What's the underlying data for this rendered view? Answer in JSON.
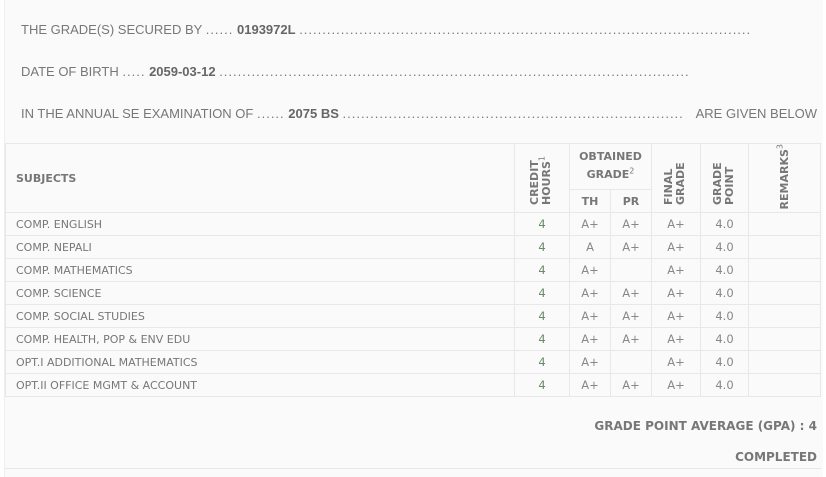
{
  "header": {
    "secured_by_label": "THE GRADE(S) SECURED BY",
    "secured_by_value": "0193972L",
    "dob_label": "DATE OF BIRTH",
    "dob_value": "2059-03-12",
    "exam_label": "IN THE ANNUAL SE EXAMINATION OF",
    "exam_value": "2075 BS",
    "exam_suffix": "ARE GIVEN BELOW"
  },
  "table": {
    "headers": {
      "subjects": "SUBJECTS",
      "credit": "CREDIT HOURS",
      "credit_sup": "1",
      "obtained": "OBTAINED GRADE",
      "obtained_sup": "2",
      "th": "TH",
      "pr": "PR",
      "final": "FINAL GRADE",
      "grade_point": "GRADE POINT",
      "remarks": "REMARKS",
      "remarks_sup": "3"
    },
    "rows": [
      {
        "subject": "COMP. ENGLISH",
        "credit": "4",
        "th": "A+",
        "pr": "A+",
        "final": "A+",
        "gp": "4.0",
        "remarks": ""
      },
      {
        "subject": "COMP. NEPALI",
        "credit": "4",
        "th": "A",
        "pr": "A+",
        "final": "A+",
        "gp": "4.0",
        "remarks": ""
      },
      {
        "subject": "COMP. MATHEMATICS",
        "credit": "4",
        "th": "A+",
        "pr": "",
        "final": "A+",
        "gp": "4.0",
        "remarks": ""
      },
      {
        "subject": "COMP. SCIENCE",
        "credit": "4",
        "th": "A+",
        "pr": "A+",
        "final": "A+",
        "gp": "4.0",
        "remarks": ""
      },
      {
        "subject": "COMP. SOCIAL STUDIES",
        "credit": "4",
        "th": "A+",
        "pr": "A+",
        "final": "A+",
        "gp": "4.0",
        "remarks": ""
      },
      {
        "subject": "COMP. HEALTH, POP & ENV EDU",
        "credit": "4",
        "th": "A+",
        "pr": "A+",
        "final": "A+",
        "gp": "4.0",
        "remarks": ""
      },
      {
        "subject": "OPT.I ADDITIONAL MATHEMATICS",
        "credit": "4",
        "th": "A+",
        "pr": "",
        "final": "A+",
        "gp": "4.0",
        "remarks": ""
      },
      {
        "subject": "OPT.II OFFICE MGMT & ACCOUNT",
        "credit": "4",
        "th": "A+",
        "pr": "A+",
        "final": "A+",
        "gp": "4.0",
        "remarks": ""
      }
    ]
  },
  "gpa": "GRADE POINT AVERAGE (GPA) : 4",
  "status": "COMPLETED"
}
